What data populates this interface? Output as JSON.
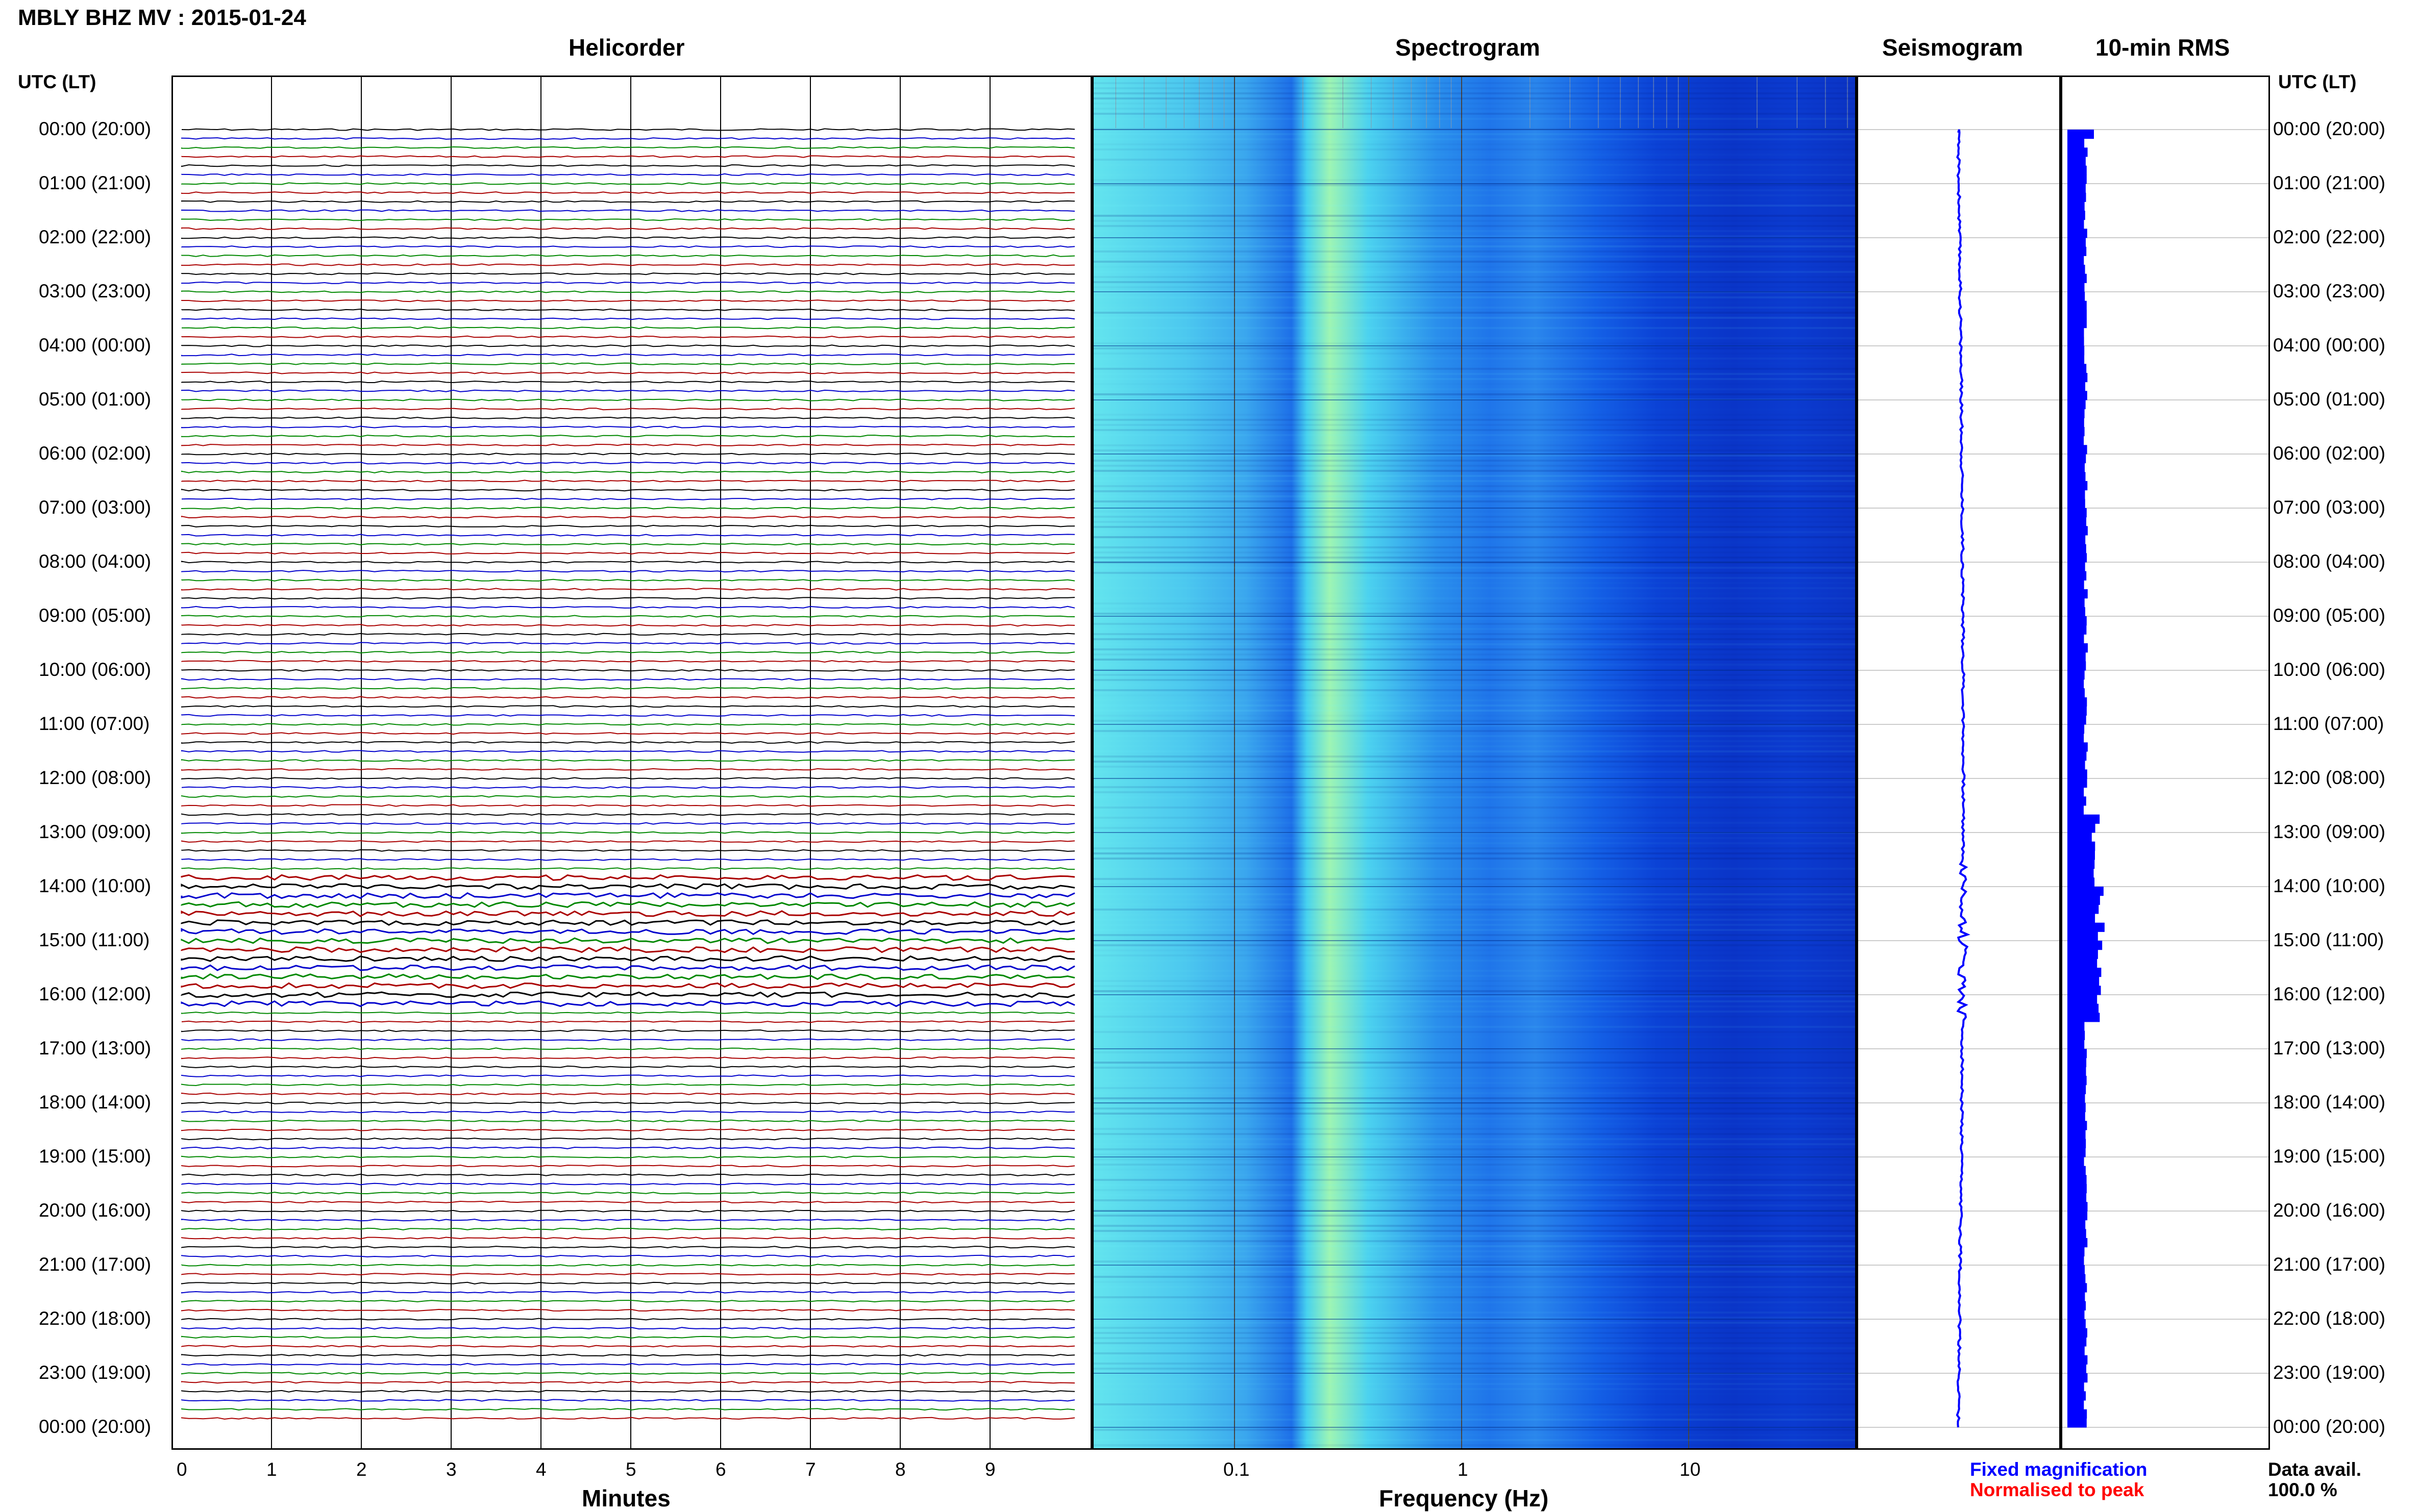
{
  "header": {
    "title": "MBLY BHZ MV : 2015-01-24"
  },
  "panels": {
    "helicorder": "Helicorder",
    "spectrogram": "Spectrogram",
    "seismogram": "Seismogram",
    "rms": "10-min RMS"
  },
  "time_axis": {
    "header": "UTC (LT)",
    "labels": [
      "00:00 (20:00)",
      "01:00 (21:00)",
      "02:00 (22:00)",
      "03:00 (23:00)",
      "04:00 (00:00)",
      "05:00 (01:00)",
      "06:00 (02:00)",
      "07:00 (03:00)",
      "08:00 (04:00)",
      "09:00 (05:00)",
      "10:00 (06:00)",
      "11:00 (07:00)",
      "12:00 (08:00)",
      "13:00 (09:00)",
      "14:00 (10:00)",
      "15:00 (11:00)",
      "16:00 (12:00)",
      "17:00 (13:00)",
      "18:00 (14:00)",
      "19:00 (15:00)",
      "20:00 (16:00)",
      "21:00 (17:00)",
      "22:00 (18:00)",
      "23:00 (19:00)",
      "00:00 (20:00)"
    ]
  },
  "helicorder_axis": {
    "ticks": [
      "0",
      "1",
      "2",
      "3",
      "4",
      "5",
      "6",
      "7",
      "8",
      "9"
    ],
    "label": "Minutes",
    "trace_colors": [
      "#000000",
      "#0000cc",
      "#008800",
      "#aa0000"
    ]
  },
  "spectrogram_axis": {
    "ticks": [
      "0.1",
      "1",
      "10"
    ],
    "label": "Frequency (Hz)"
  },
  "legend": {
    "fixed": "Fixed magnification",
    "normalised": "Normalised to peak",
    "avail_label": "Data avail.",
    "avail_value": "100.0 %"
  }
}
